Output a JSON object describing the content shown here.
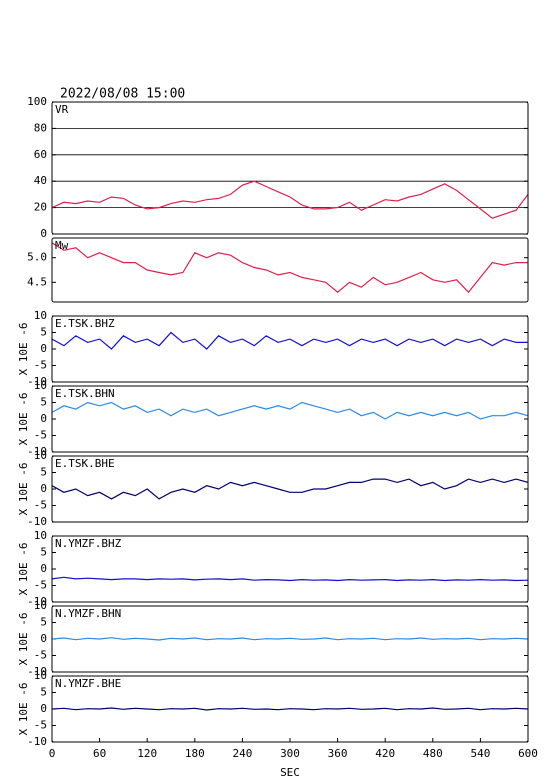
{
  "title": "2022/08/08 15:00",
  "chart_data": [
    {
      "type": "line",
      "title": "VR",
      "color": "#e0204a",
      "grid": true,
      "xlim": [
        0,
        600
      ],
      "ylim": [
        0,
        100
      ],
      "yticks": [
        0,
        20,
        40,
        60,
        80,
        100
      ],
      "x": [
        0,
        15,
        30,
        45,
        60,
        75,
        90,
        105,
        120,
        135,
        150,
        165,
        180,
        195,
        210,
        225,
        240,
        255,
        270,
        285,
        300,
        315,
        330,
        345,
        360,
        375,
        390,
        405,
        420,
        435,
        450,
        465,
        480,
        495,
        510,
        525,
        540,
        555,
        570,
        585,
        600
      ],
      "values": [
        20,
        24,
        23,
        25,
        24,
        28,
        27,
        22,
        19,
        20,
        23,
        25,
        24,
        26,
        27,
        30,
        37,
        40,
        36,
        32,
        28,
        22,
        19,
        19,
        20,
        24,
        18,
        22,
        26,
        25,
        28,
        30,
        34,
        38,
        33,
        26,
        19,
        12,
        15,
        18,
        30
      ]
    },
    {
      "type": "line",
      "title": "Mw",
      "color": "#e0204a",
      "xlim": [
        0,
        600
      ],
      "ylim": [
        4.1,
        5.4
      ],
      "yticks": [
        4.5,
        {
          "value": 5,
          "label": "5.0"
        }
      ],
      "x": [
        0,
        15,
        30,
        45,
        60,
        75,
        90,
        105,
        120,
        135,
        150,
        165,
        180,
        195,
        210,
        225,
        240,
        255,
        270,
        285,
        300,
        315,
        330,
        345,
        360,
        375,
        390,
        405,
        420,
        435,
        450,
        465,
        480,
        495,
        510,
        525,
        540,
        555,
        570,
        585,
        600
      ],
      "values": [
        5.3,
        5.15,
        5.2,
        5.0,
        5.1,
        5.0,
        4.9,
        4.9,
        4.75,
        4.7,
        4.65,
        4.7,
        5.1,
        5.0,
        5.1,
        5.05,
        4.9,
        4.8,
        4.75,
        4.65,
        4.7,
        4.6,
        4.55,
        4.5,
        4.3,
        4.5,
        4.4,
        4.6,
        4.45,
        4.5,
        4.6,
        4.7,
        4.55,
        4.5,
        4.55,
        4.3,
        4.6,
        4.9,
        4.85,
        4.9,
        4.9
      ]
    },
    {
      "type": "line",
      "title": "E.TSK.BHZ",
      "ylabel": "X 10E -6",
      "color": "#1010d0",
      "xlim": [
        0,
        600
      ],
      "ylim": [
        -10,
        10
      ],
      "yticks": [
        -10,
        -5,
        0,
        5,
        10
      ],
      "x": [
        0,
        15,
        30,
        45,
        60,
        75,
        90,
        105,
        120,
        135,
        150,
        165,
        180,
        195,
        210,
        225,
        240,
        255,
        270,
        285,
        300,
        315,
        330,
        345,
        360,
        375,
        390,
        405,
        420,
        435,
        450,
        465,
        480,
        495,
        510,
        525,
        540,
        555,
        570,
        585,
        600
      ],
      "values": [
        3,
        1,
        4,
        2,
        3,
        0,
        4,
        2,
        3,
        1,
        5,
        2,
        3,
        0,
        4,
        2,
        3,
        1,
        4,
        2,
        3,
        1,
        3,
        2,
        3,
        1,
        3,
        2,
        3,
        1,
        3,
        2,
        3,
        1,
        3,
        2,
        3,
        1,
        3,
        2,
        2
      ]
    },
    {
      "type": "line",
      "title": "E.TSK.BHN",
      "ylabel": "X 10E -6",
      "color": "#2a8ae8",
      "xlim": [
        0,
        600
      ],
      "ylim": [
        -10,
        10
      ],
      "yticks": [
        -10,
        -5,
        0,
        5,
        10
      ],
      "x": [
        0,
        15,
        30,
        45,
        60,
        75,
        90,
        105,
        120,
        135,
        150,
        165,
        180,
        195,
        210,
        225,
        240,
        255,
        270,
        285,
        300,
        315,
        330,
        345,
        360,
        375,
        390,
        405,
        420,
        435,
        450,
        465,
        480,
        495,
        510,
        525,
        540,
        555,
        570,
        585,
        600
      ],
      "values": [
        2,
        4,
        3,
        5,
        4,
        5,
        3,
        4,
        2,
        3,
        1,
        3,
        2,
        3,
        1,
        2,
        3,
        4,
        3,
        4,
        3,
        5,
        4,
        3,
        2,
        3,
        1,
        2,
        0,
        2,
        1,
        2,
        1,
        2,
        1,
        2,
        0,
        1,
        1,
        2,
        1
      ]
    },
    {
      "type": "line",
      "title": "E.TSK.BHE",
      "ylabel": "X 10E -6",
      "color": "#000070",
      "xlim": [
        0,
        600
      ],
      "ylim": [
        -10,
        10
      ],
      "yticks": [
        -10,
        -5,
        0,
        5,
        10
      ],
      "x": [
        0,
        15,
        30,
        45,
        60,
        75,
        90,
        105,
        120,
        135,
        150,
        165,
        180,
        195,
        210,
        225,
        240,
        255,
        270,
        285,
        300,
        315,
        330,
        345,
        360,
        375,
        390,
        405,
        420,
        435,
        450,
        465,
        480,
        495,
        510,
        525,
        540,
        555,
        570,
        585,
        600
      ],
      "values": [
        1,
        -1,
        0,
        -2,
        -1,
        -3,
        -1,
        -2,
        0,
        -3,
        -1,
        0,
        -1,
        1,
        0,
        2,
        1,
        2,
        1,
        0,
        -1,
        -1,
        0,
        0,
        1,
        2,
        2,
        3,
        3,
        2,
        3,
        1,
        2,
        0,
        1,
        3,
        2,
        3,
        2,
        3,
        2
      ]
    },
    {
      "type": "line",
      "title": "N.YMZF.BHZ",
      "ylabel": "X 10E -6",
      "color": "#1010d0",
      "xlim": [
        0,
        600
      ],
      "ylim": [
        -10,
        10
      ],
      "yticks": [
        -10,
        -5,
        0,
        5,
        10
      ],
      "x": [
        0,
        15,
        30,
        45,
        60,
        75,
        90,
        105,
        120,
        135,
        150,
        165,
        180,
        195,
        210,
        225,
        240,
        255,
        270,
        285,
        300,
        315,
        330,
        345,
        360,
        375,
        390,
        405,
        420,
        435,
        450,
        465,
        480,
        495,
        510,
        525,
        540,
        555,
        570,
        585,
        600
      ],
      "values": [
        -3,
        -2.5,
        -3,
        -2.8,
        -3,
        -3.2,
        -3,
        -3,
        -3.2,
        -3,
        -3.1,
        -3,
        -3.3,
        -3.1,
        -3,
        -3.2,
        -3,
        -3.4,
        -3.2,
        -3.3,
        -3.5,
        -3.2,
        -3.4,
        -3.3,
        -3.5,
        -3.2,
        -3.4,
        -3.3,
        -3.2,
        -3.5,
        -3.3,
        -3.4,
        -3.2,
        -3.5,
        -3.3,
        -3.4,
        -3.2,
        -3.4,
        -3.3,
        -3.5,
        -3.4
      ]
    },
    {
      "type": "line",
      "title": "N.YMZF.BHN",
      "ylabel": "X 10E -6",
      "color": "#2a8ae8",
      "xlim": [
        0,
        600
      ],
      "ylim": [
        -10,
        10
      ],
      "yticks": [
        -10,
        -5,
        0,
        5,
        10
      ],
      "x": [
        0,
        15,
        30,
        45,
        60,
        75,
        90,
        105,
        120,
        135,
        150,
        165,
        180,
        195,
        210,
        225,
        240,
        255,
        270,
        285,
        300,
        315,
        330,
        345,
        360,
        375,
        390,
        405,
        420,
        435,
        450,
        465,
        480,
        495,
        510,
        525,
        540,
        555,
        570,
        585,
        600
      ],
      "values": [
        0,
        0.3,
        -0.2,
        0.2,
        0,
        0.4,
        -0.1,
        0.2,
        0,
        -0.3,
        0.2,
        0,
        0.3,
        -0.2,
        0.1,
        0,
        0.3,
        -0.2,
        0.1,
        0,
        0.2,
        -0.1,
        0,
        0.3,
        -0.2,
        0.1,
        0,
        0.2,
        -0.2,
        0.1,
        0,
        0.3,
        -0.1,
        0.1,
        0,
        0.2,
        -0.2,
        0.1,
        0,
        0.2,
        0
      ]
    },
    {
      "type": "line",
      "title": "N.YMZF.BHE",
      "ylabel": "X 10E -6",
      "color": "#000070",
      "xlim": [
        0,
        600
      ],
      "ylim": [
        -10,
        10
      ],
      "yticks": [
        -10,
        -5,
        0,
        5,
        10
      ],
      "xticks": [
        0,
        60,
        120,
        180,
        240,
        300,
        360,
        420,
        480,
        540,
        600
      ],
      "xlabel": "SEC",
      "x": [
        0,
        15,
        30,
        45,
        60,
        75,
        90,
        105,
        120,
        135,
        150,
        165,
        180,
        195,
        210,
        225,
        240,
        255,
        270,
        285,
        300,
        315,
        330,
        345,
        360,
        375,
        390,
        405,
        420,
        435,
        450,
        465,
        480,
        495,
        510,
        525,
        540,
        555,
        570,
        585,
        600
      ],
      "values": [
        0,
        0.2,
        -0.2,
        0.1,
        0,
        0.3,
        -0.1,
        0.2,
        0,
        -0.2,
        0.1,
        0,
        0.2,
        -0.3,
        0.1,
        0,
        0.2,
        -0.1,
        0,
        -0.2,
        0.1,
        0,
        -0.2,
        0.1,
        0,
        0.2,
        -0.1,
        0,
        0.2,
        -0.2,
        0.1,
        0,
        0.3,
        -0.1,
        0,
        0.2,
        -0.2,
        0.1,
        0,
        0.2,
        0
      ]
    }
  ]
}
